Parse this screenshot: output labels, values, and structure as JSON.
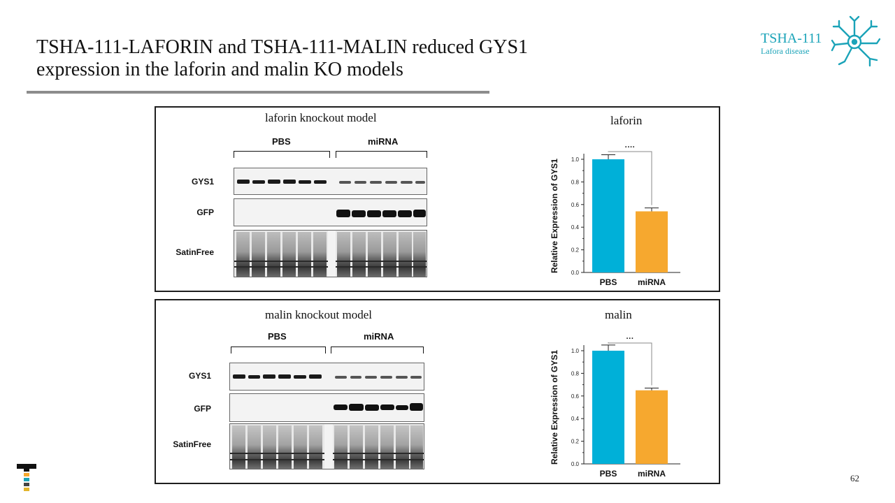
{
  "slide": {
    "title_line1": "TSHA-111-LAFORIN and TSHA-111-MALIN reduced GYS1",
    "title_line2": "expression in the laforin and malin KO models",
    "brand_name": "TSHA-111",
    "brand_sub": "Lafora disease",
    "page_number": "62",
    "accent_color": "#1aa3b8"
  },
  "panels": [
    {
      "model_title": "laforin knockout model",
      "group_pbs": "PBS",
      "group_mirna": "miRNA",
      "row_labels": [
        "GYS1",
        "GFP",
        "SatinFree"
      ],
      "chart_title": "laforin"
    },
    {
      "model_title": "malin knockout model",
      "group_pbs": "PBS",
      "group_mirna": "miRNA",
      "row_labels": [
        "GYS1",
        "GFP",
        "SatinFree"
      ],
      "chart_title": "malin"
    }
  ],
  "chart_data": [
    {
      "type": "bar",
      "title": "laforin",
      "categories": [
        "PBS",
        "miRNA"
      ],
      "values": [
        1.0,
        0.54
      ],
      "errors": [
        0.04,
        0.03
      ],
      "colors": [
        "#00b0d8",
        "#f6a82f"
      ],
      "ylabel": "Relative Expression of GYS1",
      "xlabel": "",
      "ylim": [
        0,
        1.0
      ],
      "yticks": [
        "0.0",
        "0.2",
        "0.4",
        "0.6",
        "0.8",
        "1.0"
      ],
      "significance": "····"
    },
    {
      "type": "bar",
      "title": "malin",
      "categories": [
        "PBS",
        "miRNA"
      ],
      "values": [
        1.0,
        0.65
      ],
      "errors": [
        0.05,
        0.02
      ],
      "colors": [
        "#00b0d8",
        "#f6a82f"
      ],
      "ylabel": "Relative Expression of GYS1",
      "xlabel": "",
      "ylim": [
        0,
        1.0
      ],
      "yticks": [
        "0.0",
        "0.2",
        "0.4",
        "0.6",
        "0.8",
        "1.0"
      ],
      "significance": "···"
    }
  ]
}
